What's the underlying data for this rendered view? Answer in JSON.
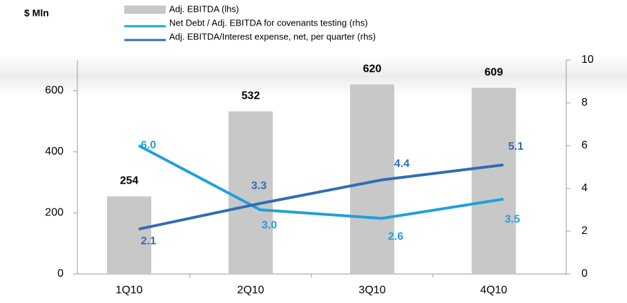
{
  "chart_data": {
    "type": "bar",
    "unit_label": "$ Mln",
    "categories": [
      "1Q10",
      "2Q10",
      "3Q10",
      "4Q10"
    ],
    "series": [
      {
        "name": "Adj. EBITDA (lhs)",
        "type": "bar",
        "color": "#c8c8c8",
        "values": [
          254,
          532,
          620,
          609
        ]
      },
      {
        "name": "Net Debt / Adj. EBITDA for covenants testing (rhs)",
        "type": "line",
        "axis": "y2",
        "color": "#1ea0dc",
        "values": [
          6.0,
          3.0,
          2.6,
          3.5
        ],
        "value_labels": [
          "6.0",
          "3.0",
          "2.6",
          "3.5"
        ]
      },
      {
        "name": "Adj. EBITDA/Interest expense, net, per quarter (rhs)",
        "type": "line",
        "axis": "y2",
        "color": "#2f6db3",
        "values": [
          2.1,
          3.3,
          4.4,
          5.1
        ],
        "value_labels": [
          "2.1",
          "3.3",
          "4.4",
          "5.1"
        ]
      }
    ],
    "ylim": [
      0,
      700
    ],
    "yticks": [
      0,
      200,
      400,
      600
    ],
    "y2lim": [
      0,
      10
    ],
    "y2ticks": [
      0,
      2,
      4,
      6,
      8,
      10
    ]
  }
}
